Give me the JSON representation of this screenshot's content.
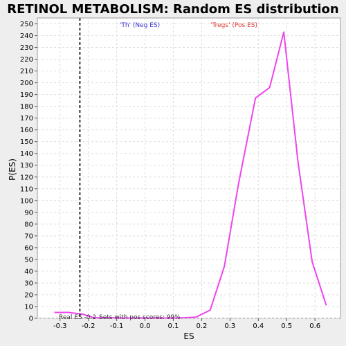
{
  "chart_data": {
    "type": "line",
    "title": "RETINOL METABOLISM: Random ES distribution",
    "xlabel": "ES",
    "ylabel": "P(ES)",
    "xlim": [
      -0.38,
      0.69
    ],
    "ylim": [
      0,
      255
    ],
    "x_ticks": [
      -0.3,
      -0.2,
      -0.1,
      0.0,
      0.1,
      0.2,
      0.3,
      0.4,
      0.5,
      0.6
    ],
    "x_tick_labels": [
      "-0.3",
      "-0.2",
      "-0.1",
      "0.0",
      "0.1",
      "0.2",
      "0.3",
      "0.4",
      "0.5",
      "0.6"
    ],
    "y_ticks": [
      0,
      10,
      20,
      30,
      40,
      50,
      60,
      70,
      80,
      90,
      100,
      110,
      120,
      130,
      140,
      150,
      160,
      170,
      180,
      190,
      200,
      210,
      220,
      230,
      240,
      250
    ],
    "y_tick_labels": [
      "0",
      "10",
      "20",
      "30",
      "40",
      "50",
      "60",
      "70",
      "80",
      "90",
      "100",
      "110",
      "120",
      "130",
      "140",
      "150",
      "160",
      "170",
      "180",
      "190",
      "200",
      "210",
      "220",
      "230",
      "240",
      "250"
    ],
    "grid": true,
    "series": [
      {
        "color": "#ee44ee",
        "x": [
          -0.32,
          -0.27,
          -0.22,
          -0.18,
          -0.13,
          -0.08,
          -0.03,
          0.02,
          0.07,
          0.12,
          0.18,
          0.23,
          0.28,
          0.33,
          0.39,
          0.44,
          0.49,
          0.54,
          0.59,
          0.64
        ],
        "y": [
          5,
          5,
          3.5,
          0.5,
          0.5,
          0.3,
          0.3,
          0.3,
          0.3,
          0.3,
          1,
          7,
          44,
          114,
          187,
          196,
          243,
          133,
          48,
          11
        ]
      }
    ],
    "real_es_line": {
      "x": -0.23,
      "label": "Real ES -0.2",
      "color": "#333333"
    },
    "annotation": "Sets with pos scores: 99%",
    "legend": [
      {
        "label": "'Th' (Neg ES)",
        "color": "#3333cc"
      },
      {
        "label": "'Tregs' (Pos ES)",
        "color": "#dd3333"
      }
    ],
    "colors": {
      "background": "#eeeeee",
      "plot_background": "#ffffff",
      "grid": "#dddddd"
    }
  }
}
